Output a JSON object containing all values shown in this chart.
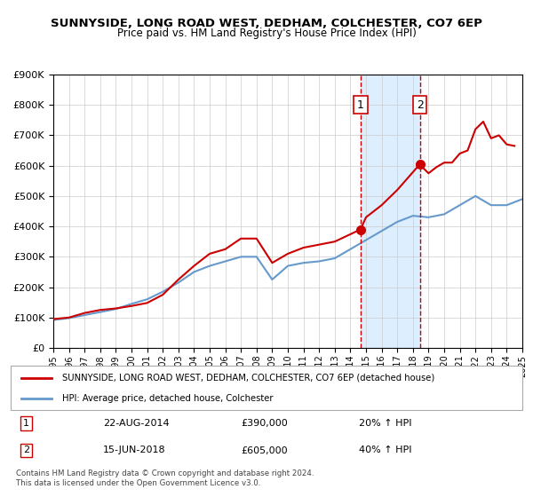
{
  "title": "SUNNYSIDE, LONG ROAD WEST, DEDHAM, COLCHESTER, CO7 6EP",
  "subtitle": "Price paid vs. HM Land Registry's House Price Index (HPI)",
  "legend_label1": "SUNNYSIDE, LONG ROAD WEST, DEDHAM, COLCHESTER, CO7 6EP (detached house)",
  "legend_label2": "HPI: Average price, detached house, Colchester",
  "xlabel": "",
  "ylabel": "",
  "sale1_date": "22-AUG-2014",
  "sale1_price": 390000,
  "sale1_pct": "20% ↑ HPI",
  "sale2_date": "15-JUN-2018",
  "sale2_price": 605000,
  "sale2_pct": "40% ↑ HPI",
  "footnote": "Contains HM Land Registry data © Crown copyright and database right 2024.\nThis data is licensed under the Open Government Licence v3.0.",
  "property_color": "#cc0000",
  "hpi_color": "#6699cc",
  "shaded_color": "#ddeeff",
  "marker_color": "#cc0000",
  "vline_color": "#cc0000",
  "ylim_max": 900000,
  "ylim_min": 0,
  "xlim_min": 1995,
  "xlim_max": 2025,
  "property_x": [
    1995,
    1996,
    1997,
    1998,
    1999,
    2000,
    2001,
    2002,
    2003,
    2004,
    2005,
    2006,
    2007,
    2008,
    2009,
    2010,
    2011,
    2012,
    2013,
    2014.65,
    2015,
    2016,
    2017,
    2018.45,
    2018.7,
    2019,
    2019.5,
    2020,
    2020.5,
    2021,
    2021.5,
    2022,
    2022.5,
    2023,
    2023.5,
    2024,
    2024.5
  ],
  "property_y": [
    95000,
    100000,
    115000,
    125000,
    130000,
    138000,
    148000,
    175000,
    225000,
    270000,
    310000,
    325000,
    360000,
    360000,
    280000,
    310000,
    330000,
    340000,
    350000,
    390000,
    430000,
    470000,
    520000,
    605000,
    590000,
    575000,
    595000,
    610000,
    610000,
    640000,
    650000,
    720000,
    745000,
    690000,
    700000,
    670000,
    665000
  ],
  "hpi_x": [
    1995,
    1996,
    1997,
    1998,
    1999,
    2000,
    2001,
    2002,
    2003,
    2004,
    2005,
    2006,
    2007,
    2008,
    2009,
    2010,
    2011,
    2012,
    2013,
    2014,
    2015,
    2016,
    2017,
    2018,
    2019,
    2020,
    2021,
    2022,
    2023,
    2024,
    2025
  ],
  "hpi_y": [
    92000,
    98000,
    108000,
    118000,
    128000,
    145000,
    160000,
    185000,
    215000,
    250000,
    270000,
    285000,
    300000,
    300000,
    225000,
    270000,
    280000,
    285000,
    295000,
    325000,
    355000,
    385000,
    415000,
    435000,
    430000,
    440000,
    470000,
    500000,
    470000,
    470000,
    490000
  ],
  "sale1_x": 2014.65,
  "sale2_x": 2018.45,
  "vline1_x": 2014.65,
  "vline2_x": 2018.45
}
